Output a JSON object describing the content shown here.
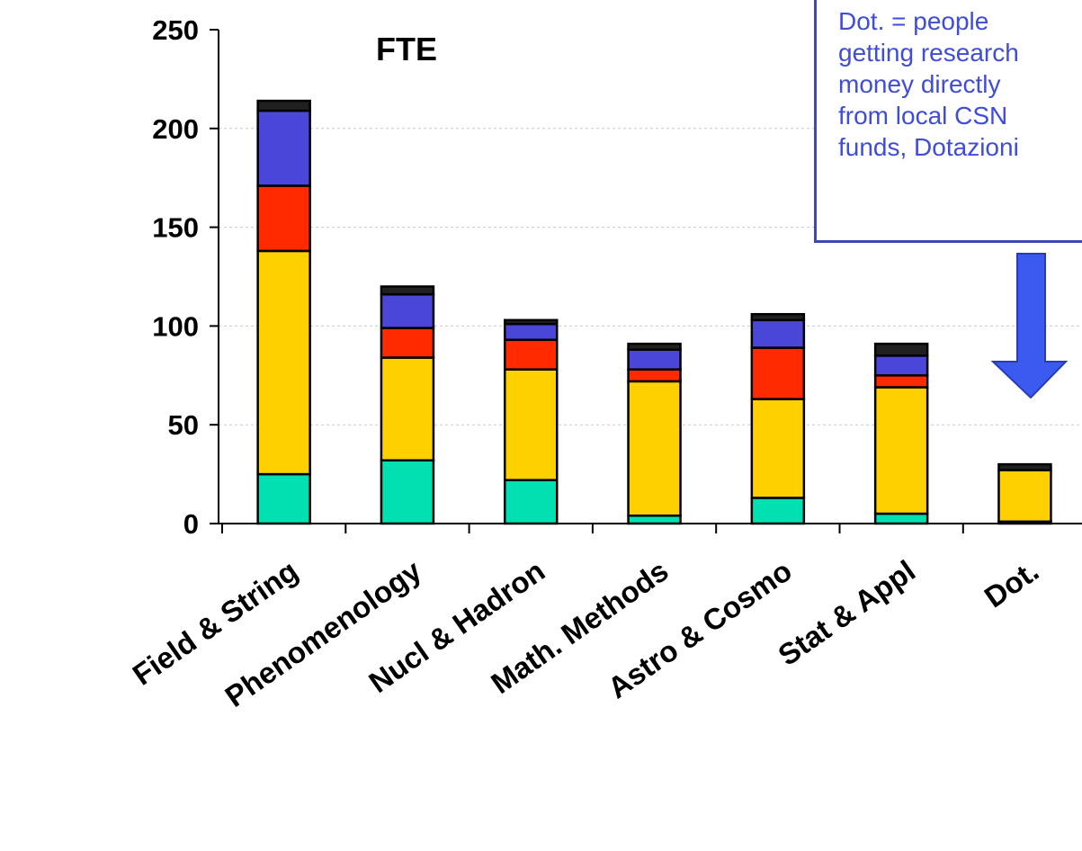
{
  "chart_data": {
    "type": "bar",
    "stacked": true,
    "title": "FTE",
    "xlabel": "",
    "ylabel": "",
    "ylim": [
      0,
      250
    ],
    "yticks": [
      "0",
      "50",
      "100",
      "150",
      "200",
      "250"
    ],
    "grid": true,
    "categories": [
      "Field & String",
      "Phenomenology",
      "Nucl & Hadron",
      "Math. Methods",
      "Astro & Cosmo",
      "Stat & Appl",
      "Dot."
    ],
    "series": [
      {
        "color": "#00e0b0",
        "values": [
          25,
          32,
          22,
          4,
          13,
          5,
          1
        ]
      },
      {
        "color": "#ffd000",
        "values": [
          113,
          52,
          56,
          68,
          50,
          64,
          26
        ]
      },
      {
        "color": "#ff2a00",
        "values": [
          33,
          15,
          15,
          6,
          26,
          6,
          0
        ]
      },
      {
        "color": "#4a46d8",
        "values": [
          38,
          17,
          8,
          10,
          14,
          10,
          0
        ]
      },
      {
        "color": "#202020",
        "values": [
          5,
          4,
          2,
          3,
          3,
          6,
          3
        ]
      }
    ]
  },
  "annotation": {
    "lines": [
      "Dot. = people",
      "getting research",
      "money directly",
      "from local CSN",
      "funds, Dotazioni"
    ],
    "text_color": "#3f4dd8",
    "arrow_color": "#3b5bf0"
  }
}
